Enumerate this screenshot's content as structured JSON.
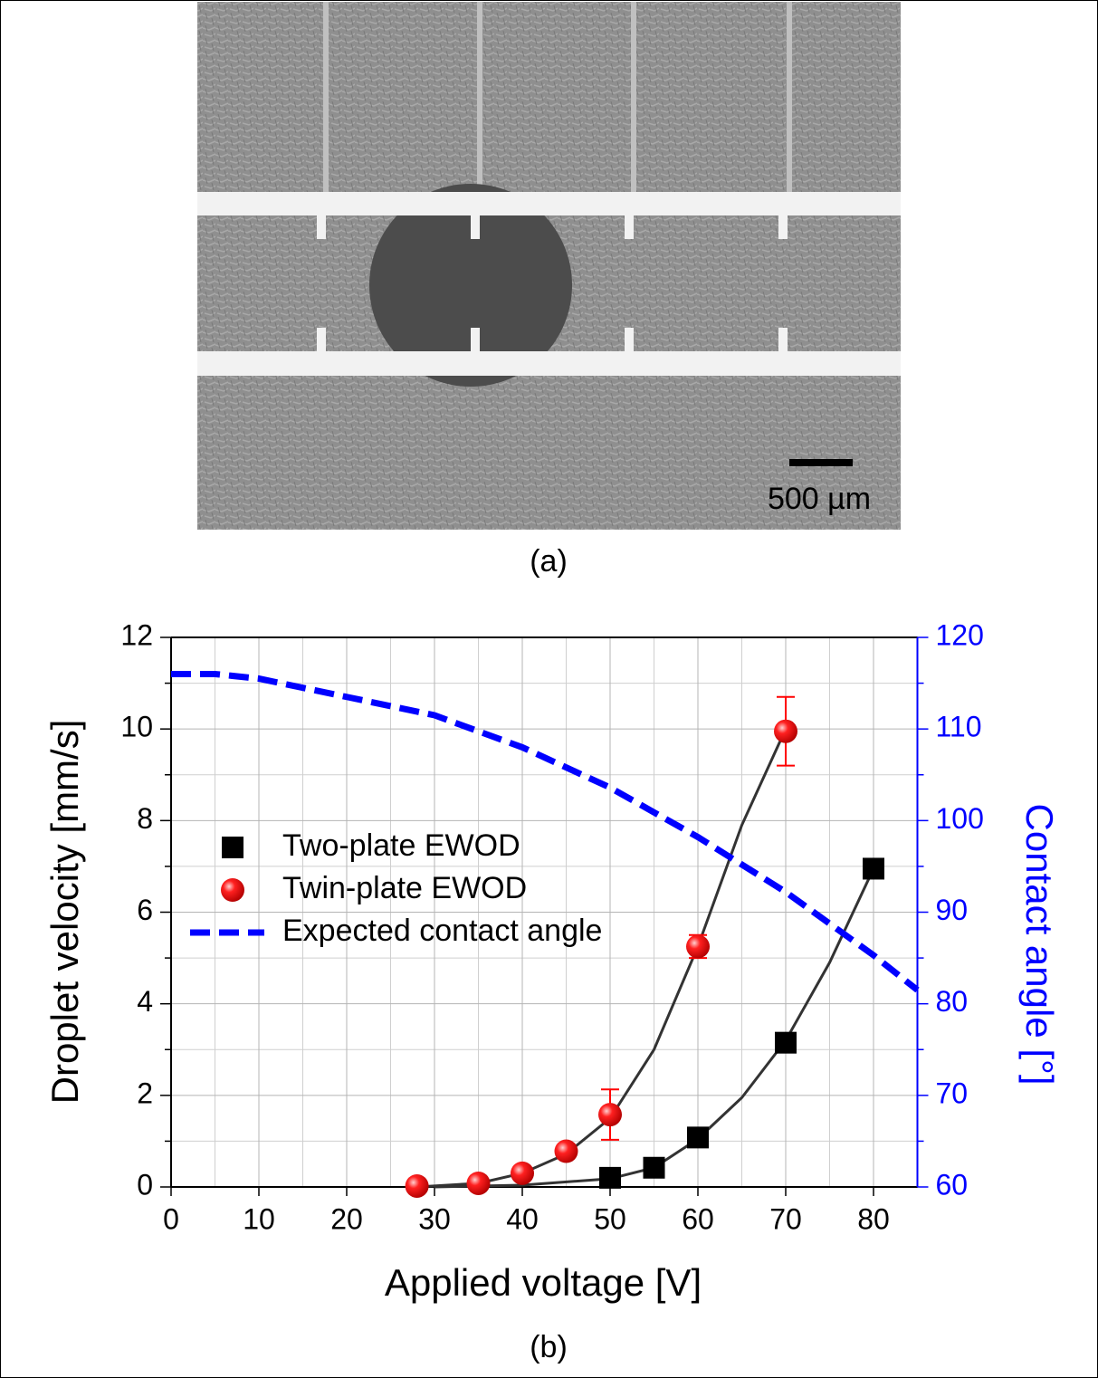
{
  "caption_a": "(a)",
  "scale_bar_label": "500 µm",
  "chart_data": {
    "type": "scatter",
    "caption": "(b)",
    "xlabel": "Applied voltage [V]",
    "ylabel": "Droplet velocity [mm/s]",
    "y2label": "Contact angle [°]",
    "xlim": [
      0,
      85
    ],
    "xticks": [
      0,
      10,
      20,
      30,
      40,
      50,
      60,
      70,
      80
    ],
    "ylim": [
      0,
      12
    ],
    "yticks": [
      0,
      2,
      4,
      6,
      8,
      10,
      12
    ],
    "y2lim": [
      60,
      120
    ],
    "y2ticks": [
      60,
      70,
      80,
      90,
      100,
      110,
      120
    ],
    "grid": true,
    "minor_grid": true,
    "legend": "center left",
    "series": [
      {
        "name": "Two-plate EWOD",
        "color": "#000000",
        "marker": "square",
        "x": [
          50,
          55,
          60,
          70,
          80
        ],
        "values": [
          0.2,
          0.42,
          1.08,
          3.15,
          6.95
        ],
        "errors": [
          0.08,
          0.1,
          0.12,
          0.2,
          0.15
        ]
      },
      {
        "name": "Twin-plate EWOD",
        "color": "#ff0000",
        "marker": "circle",
        "x": [
          28,
          35,
          40,
          45,
          50,
          60,
          70
        ],
        "values": [
          0.02,
          0.08,
          0.3,
          0.78,
          1.58,
          5.25,
          9.95
        ],
        "errors": [
          0.03,
          0.04,
          0.06,
          0.1,
          0.55,
          0.25,
          0.75
        ]
      },
      {
        "name": "Expected contact angle",
        "color": "#0000ff",
        "marker": "dash",
        "axis": "y2",
        "x": [
          0,
          5,
          10,
          20,
          30,
          40,
          50,
          60,
          70,
          80,
          85
        ],
        "values": [
          116,
          116,
          115.5,
          113.5,
          111.5,
          108,
          103.6,
          98.2,
          92.2,
          85.3,
          81.5
        ]
      }
    ],
    "fits": [
      {
        "color": "#333333",
        "x": [
          30,
          40,
          50,
          55,
          60,
          65,
          70,
          75,
          80
        ],
        "values": [
          0,
          0.04,
          0.18,
          0.42,
          1.05,
          1.95,
          3.2,
          4.9,
          6.95
        ]
      },
      {
        "color": "#333333",
        "x": [
          28,
          35,
          40,
          45,
          50,
          55,
          60,
          65,
          70
        ],
        "values": [
          0,
          0.08,
          0.3,
          0.72,
          1.5,
          3.0,
          5.25,
          7.9,
          10.0
        ]
      }
    ]
  }
}
